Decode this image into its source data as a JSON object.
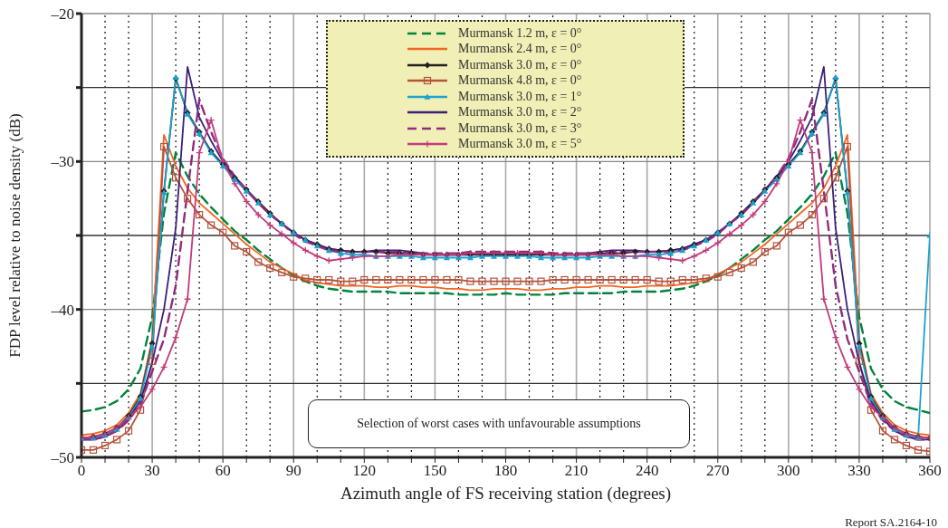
{
  "chart_data": {
    "type": "line",
    "xlabel": "Azimuth angle of FS receiving station (degrees)",
    "ylabel": "FDP level relative to noise density (dB)",
    "annotations": [
      "Selection of worst cases with unfavourable assumptions",
      "Report SA.2164-10"
    ],
    "xlim": [
      0,
      360
    ],
    "ylim": [
      -50,
      -20
    ],
    "xticks": [
      0,
      {
        "value": 10,
        "label": null
      },
      {
        "value": 20,
        "label": null
      },
      30,
      {
        "value": 40,
        "label": null
      },
      {
        "value": 50,
        "label": null
      },
      60,
      {
        "value": 70,
        "label": null
      },
      {
        "value": 80,
        "label": null
      },
      90,
      {
        "value": 100,
        "label": null
      },
      {
        "value": 110,
        "label": null
      },
      120,
      {
        "value": 130,
        "label": null
      },
      {
        "value": 140,
        "label": null
      },
      150,
      {
        "value": 160,
        "label": null
      },
      {
        "value": 170,
        "label": null
      },
      180,
      {
        "value": 190,
        "label": null
      },
      {
        "value": 200,
        "label": null
      },
      210,
      {
        "value": 220,
        "label": null
      },
      {
        "value": 230,
        "label": null
      },
      240,
      {
        "value": 250,
        "label": null
      },
      {
        "value": 260,
        "label": null
      },
      270,
      {
        "value": 280,
        "label": null
      },
      {
        "value": 290,
        "label": null
      },
      300,
      {
        "value": 310,
        "label": null
      },
      {
        "value": 320,
        "label": null
      },
      330,
      {
        "value": 340,
        "label": null
      },
      {
        "value": 350,
        "label": null
      },
      360
    ],
    "yticks": [
      {
        "value": -50,
        "label": "–50"
      },
      {
        "value": -45,
        "label": null
      },
      {
        "value": -40,
        "label": "–40"
      },
      {
        "value": -35,
        "label": null
      },
      {
        "value": -30,
        "label": "–30"
      },
      {
        "value": -25,
        "label": null
      },
      {
        "value": -20,
        "label": "–20"
      }
    ],
    "grid": true,
    "legend": "top",
    "x": [
      0,
      5,
      10,
      15,
      20,
      25,
      30,
      35,
      40,
      45,
      50,
      55,
      60,
      65,
      70,
      75,
      80,
      85,
      90,
      95,
      100,
      105,
      110,
      115,
      120,
      125,
      130,
      135,
      140,
      145,
      150,
      155,
      160,
      165,
      170,
      175,
      180,
      185,
      190,
      195,
      200,
      205,
      210,
      215,
      220,
      225,
      230,
      235,
      240,
      245,
      250,
      255,
      260,
      265,
      270,
      275,
      280,
      285,
      290,
      295,
      300,
      305,
      310,
      315,
      320,
      325,
      330,
      335,
      340,
      345,
      350,
      355,
      360
    ],
    "series": [
      {
        "name": "Murmansk 1.2 m, ε = 0°",
        "color": "#00843d",
        "line_style": "dashed",
        "marker": "none",
        "values": [
          -46.9,
          -46.8,
          -46.6,
          -46.2,
          -45.4,
          -44.0,
          -40.5,
          -33.5,
          -29.4,
          -31.0,
          -32.2,
          -33.1,
          -33.9,
          -34.7,
          -35.3,
          -36.0,
          -36.6,
          -37.2,
          -37.7,
          -38.1,
          -38.4,
          -38.6,
          -38.7,
          -38.8,
          -38.8,
          -38.8,
          -38.8,
          -38.9,
          -38.9,
          -38.9,
          -38.9,
          -38.9,
          -39.0,
          -39.0,
          -39.0,
          -39.0,
          -38.9,
          -39.0,
          -39.0,
          -39.0,
          -39.0,
          -38.9,
          -38.9,
          -38.9,
          -38.9,
          -38.9,
          -38.8,
          -38.8,
          -38.8,
          -38.8,
          -38.7,
          -38.6,
          -38.4,
          -38.1,
          -37.7,
          -37.2,
          -36.6,
          -36.0,
          -35.3,
          -34.7,
          -33.9,
          -33.1,
          -32.2,
          -31.0,
          -29.4,
          -33.5,
          -40.5,
          -44.0,
          -45.4,
          -46.2,
          -46.6,
          -46.8,
          -47.0
        ]
      },
      {
        "name": "Murmansk 2.4 m, ε = 0°",
        "color": "#f26522",
        "line_style": "solid",
        "marker": "none",
        "values": [
          -48.5,
          -48.4,
          -48.2,
          -47.8,
          -47.0,
          -45.7,
          -42.0,
          -28.2,
          -30.3,
          -31.8,
          -32.8,
          -33.5,
          -34.2,
          -34.9,
          -35.6,
          -36.2,
          -36.8,
          -37.2,
          -37.6,
          -38.0,
          -38.2,
          -38.3,
          -38.4,
          -38.4,
          -38.4,
          -38.5,
          -38.5,
          -38.4,
          -38.4,
          -38.5,
          -38.5,
          -38.6,
          -38.6,
          -38.7,
          -38.7,
          -38.6,
          -38.6,
          -38.6,
          -38.7,
          -38.7,
          -38.6,
          -38.6,
          -38.5,
          -38.5,
          -38.4,
          -38.4,
          -38.5,
          -38.5,
          -38.4,
          -38.4,
          -38.4,
          -38.3,
          -38.2,
          -38.0,
          -37.6,
          -37.2,
          -36.8,
          -36.2,
          -35.6,
          -34.9,
          -34.2,
          -33.5,
          -32.8,
          -31.8,
          -30.3,
          -28.2,
          -42.0,
          -45.7,
          -47.0,
          -47.8,
          -48.2,
          -48.4,
          -48.5
        ]
      },
      {
        "name": "Murmansk 3.0 m, ε = 0°",
        "color": "#231f20",
        "line_style": "solid",
        "marker": "diamond",
        "values": [
          -48.7,
          -48.6,
          -48.4,
          -48.0,
          -47.2,
          -45.9,
          -42.3,
          -32.0,
          -24.4,
          -26.7,
          -28.0,
          -29.3,
          -30.2,
          -31.1,
          -31.9,
          -32.7,
          -33.5,
          -34.2,
          -34.8,
          -35.3,
          -35.6,
          -35.9,
          -36.0,
          -36.1,
          -36.1,
          -36.1,
          -36.2,
          -36.2,
          -36.2,
          -36.3,
          -36.3,
          -36.3,
          -36.3,
          -36.3,
          -36.3,
          -36.3,
          -36.3,
          -36.3,
          -36.3,
          -36.3,
          -36.3,
          -36.3,
          -36.3,
          -36.3,
          -36.2,
          -36.2,
          -36.2,
          -36.1,
          -36.1,
          -36.1,
          -36.0,
          -35.9,
          -35.6,
          -35.3,
          -34.8,
          -34.2,
          -33.5,
          -32.7,
          -31.9,
          -31.1,
          -30.2,
          -29.3,
          -28.0,
          -26.7,
          -24.4,
          -32.0,
          -42.3,
          -45.9,
          -47.2,
          -48.0,
          -48.4,
          -48.6,
          -48.7
        ]
      },
      {
        "name": "Murmansk 4.8 m, ε = 0°",
        "color": "#b5533c",
        "line_style": "solid",
        "marker": "square",
        "values": [
          -49.5,
          -49.5,
          -49.2,
          -48.8,
          -48.2,
          -46.8,
          -43.5,
          -29.0,
          -31.1,
          -32.5,
          -33.6,
          -34.3,
          -34.8,
          -35.7,
          -36.1,
          -36.8,
          -37.2,
          -37.5,
          -37.8,
          -37.9,
          -38.0,
          -38.0,
          -38.1,
          -38.1,
          -38.0,
          -38.0,
          -38.0,
          -38.0,
          -38.0,
          -38.0,
          -38.0,
          -38.0,
          -38.0,
          -38.1,
          -38.1,
          -38.1,
          -38.1,
          -38.1,
          -38.1,
          -38.1,
          -38.0,
          -38.0,
          -38.0,
          -38.0,
          -38.0,
          -38.0,
          -38.0,
          -38.0,
          -38.0,
          -38.1,
          -38.1,
          -38.0,
          -38.0,
          -37.9,
          -37.8,
          -37.5,
          -37.2,
          -36.8,
          -36.1,
          -35.7,
          -34.8,
          -34.3,
          -33.6,
          -32.5,
          -31.1,
          -29.0,
          -43.5,
          -46.8,
          -48.2,
          -48.8,
          -49.2,
          -49.5,
          -49.6
        ]
      },
      {
        "name": "Murmansk 3.0 m, ε = 1°",
        "color": "#1ba3d0",
        "line_style": "solid",
        "marker": "triangle",
        "values": [
          -48.7,
          -48.7,
          -48.5,
          -48.1,
          -47.3,
          -46.0,
          -42.5,
          -32.1,
          -24.3,
          -26.8,
          -28.1,
          -29.4,
          -30.3,
          -31.2,
          -32.0,
          -32.8,
          -33.6,
          -34.2,
          -34.8,
          -35.3,
          -35.7,
          -36.0,
          -36.2,
          -36.3,
          -36.3,
          -36.4,
          -36.4,
          -36.4,
          -36.4,
          -36.5,
          -36.5,
          -36.5,
          -36.5,
          -36.5,
          -36.4,
          -36.4,
          -36.4,
          -36.4,
          -36.4,
          -36.5,
          -36.5,
          -36.5,
          -36.5,
          -36.5,
          -36.4,
          -36.4,
          -36.4,
          -36.4,
          -36.3,
          -36.3,
          -36.2,
          -36.0,
          -35.7,
          -35.3,
          -34.8,
          -34.2,
          -33.6,
          -32.8,
          -32.0,
          -31.2,
          -30.3,
          -29.4,
          -28.1,
          -26.8,
          -24.3,
          -32.1,
          -42.5,
          -46.0,
          -47.3,
          -48.1,
          -48.5,
          -48.7,
          -35.0
        ]
      },
      {
        "name": "Murmansk 3.0 m, ε = 2°",
        "color": "#3b1f7a",
        "line_style": "solid",
        "marker": "none",
        "values": [
          -48.8,
          -48.8,
          -48.6,
          -48.2,
          -47.4,
          -46.2,
          -43.6,
          -40.0,
          -34.5,
          -23.6,
          -27.0,
          -28.6,
          -30.0,
          -31.0,
          -31.9,
          -32.8,
          -33.6,
          -34.2,
          -34.8,
          -35.3,
          -35.6,
          -35.9,
          -36.0,
          -36.1,
          -36.1,
          -36.0,
          -36.0,
          -36.0,
          -36.1,
          -36.2,
          -36.3,
          -36.3,
          -36.3,
          -36.2,
          -36.2,
          -36.2,
          -36.2,
          -36.2,
          -36.2,
          -36.2,
          -36.3,
          -36.3,
          -36.3,
          -36.2,
          -36.1,
          -36.0,
          -36.0,
          -36.0,
          -36.1,
          -36.1,
          -36.0,
          -35.9,
          -35.6,
          -35.3,
          -34.8,
          -34.2,
          -33.6,
          -32.8,
          -31.9,
          -31.0,
          -30.0,
          -28.6,
          -27.0,
          -23.6,
          -34.5,
          -40.0,
          -43.6,
          -46.2,
          -47.4,
          -48.2,
          -48.6,
          -48.8,
          -48.8
        ]
      },
      {
        "name": "Murmansk 3.0 m, ε = 3°",
        "color": "#922b7e",
        "line_style": "dashed",
        "marker": "none",
        "values": [
          -48.8,
          -48.8,
          -48.6,
          -48.2,
          -47.5,
          -46.4,
          -44.2,
          -42.0,
          -38.4,
          -32.0,
          -25.8,
          -28.0,
          -29.8,
          -31.0,
          -31.9,
          -32.8,
          -33.6,
          -34.2,
          -34.9,
          -35.4,
          -35.7,
          -36.0,
          -36.1,
          -36.1,
          -36.1,
          -36.1,
          -36.1,
          -36.1,
          -36.2,
          -36.2,
          -36.2,
          -36.2,
          -36.2,
          -36.1,
          -36.1,
          -36.1,
          -36.1,
          -36.1,
          -36.1,
          -36.1,
          -36.2,
          -36.2,
          -36.2,
          -36.2,
          -36.2,
          -36.1,
          -36.1,
          -36.1,
          -36.1,
          -36.1,
          -36.1,
          -36.0,
          -35.7,
          -35.4,
          -34.9,
          -34.2,
          -33.6,
          -32.8,
          -31.9,
          -31.0,
          -29.8,
          -28.0,
          -25.8,
          -32.0,
          -38.4,
          -42.0,
          -44.2,
          -46.4,
          -47.5,
          -48.2,
          -48.6,
          -48.8,
          -48.8
        ]
      },
      {
        "name": "Murmansk 3.0 m, ε = 5°",
        "color": "#c23b7c",
        "line_style": "solid",
        "marker": "cross",
        "values": [
          -48.7,
          -48.6,
          -48.4,
          -48.0,
          -47.3,
          -46.6,
          -45.4,
          -43.9,
          -41.9,
          -39.3,
          -29.4,
          -27.2,
          -30.0,
          -31.5,
          -32.7,
          -33.6,
          -34.3,
          -34.9,
          -35.5,
          -36.0,
          -36.4,
          -36.7,
          -36.6,
          -36.5,
          -36.4,
          -36.4,
          -36.4,
          -36.3,
          -36.3,
          -36.3,
          -36.3,
          -36.3,
          -36.3,
          -36.2,
          -36.2,
          -36.2,
          -36.2,
          -36.2,
          -36.2,
          -36.2,
          -36.3,
          -36.3,
          -36.3,
          -36.3,
          -36.3,
          -36.3,
          -36.4,
          -36.4,
          -36.4,
          -36.5,
          -36.6,
          -36.7,
          -36.4,
          -36.0,
          -35.5,
          -34.9,
          -34.3,
          -33.6,
          -32.7,
          -31.5,
          -30.0,
          -27.2,
          -29.4,
          -39.3,
          -41.9,
          -43.9,
          -45.4,
          -46.6,
          -47.3,
          -48.0,
          -48.4,
          -48.6,
          -48.7
        ]
      }
    ]
  }
}
